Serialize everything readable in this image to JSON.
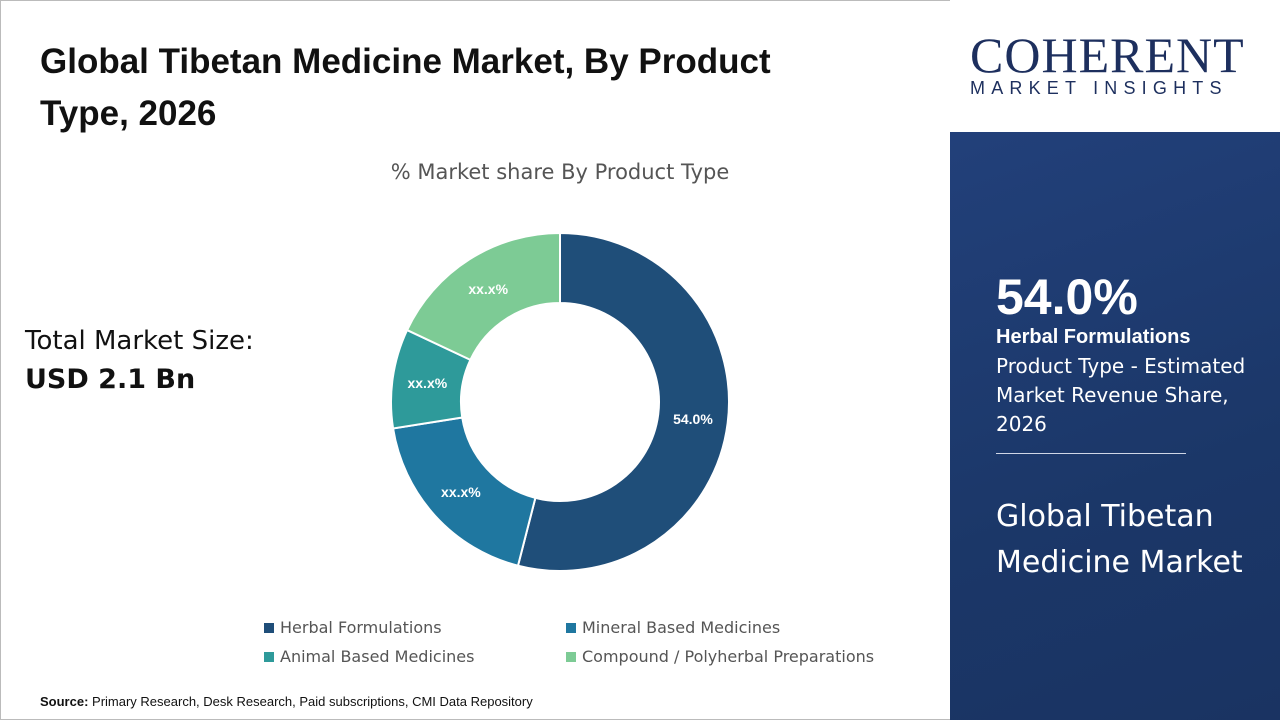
{
  "title": "Global Tibetan Medicine Market, By Product Type, 2026",
  "total_market_label": "Total Market Size:",
  "total_market_value": "USD 2.1 Bn",
  "source_label": "Source:",
  "source_text": " Primary Research, Desk Research, Paid subscriptions, CMI Data Repository",
  "logo": {
    "word": "COHERENT",
    "tagline": "MARKET INSIGHTS"
  },
  "panel": {
    "percent": "54.0%",
    "segment": "Herbal Formulations",
    "description": "Product Type - Estimated Market Revenue Share, 2026",
    "market": "Global Tibetan Medicine Market"
  },
  "chart_data": {
    "type": "pie",
    "donut": true,
    "title": "% Market share By Product Type",
    "categories": [
      "Herbal Formulations",
      "Mineral Based Medicines",
      "Animal Based Medicines",
      "Compound / Polyherbal Preparations"
    ],
    "values": [
      54.0,
      18.5,
      9.5,
      18.0
    ],
    "data_labels": [
      "54.0%",
      "xx.x%",
      "xx.x%",
      "xx.x%"
    ],
    "colors": [
      "#1f4e79",
      "#1f77a0",
      "#2e9a9a",
      "#7dcb95"
    ],
    "legend": "bottom"
  }
}
